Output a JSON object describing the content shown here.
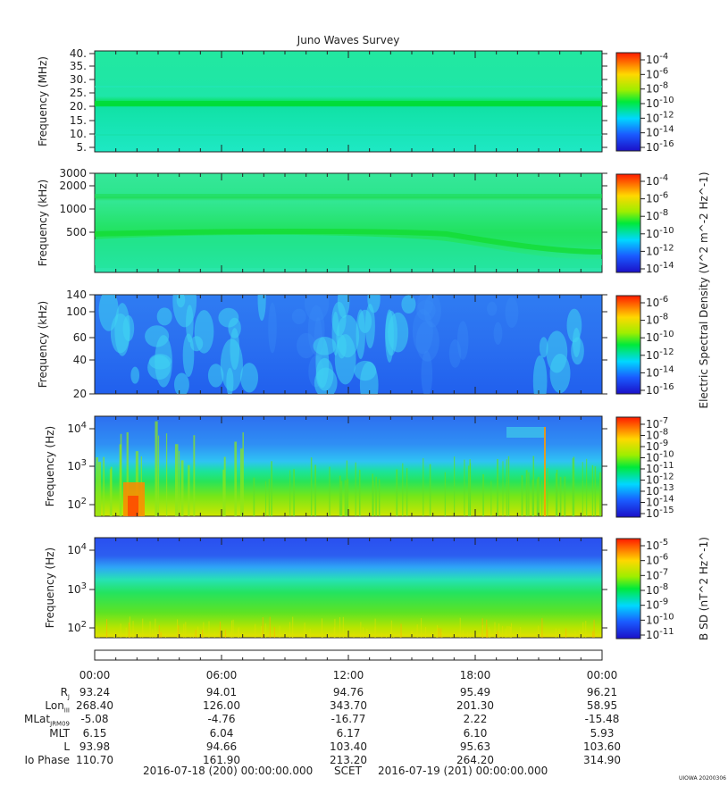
{
  "chart_data": {
    "type": "heatmap",
    "title": "Juno Waves Survey",
    "panels": [
      {
        "ylabel": "Frequency (MHz)",
        "yticks": [
          "40.",
          "35.",
          "30.",
          "25.",
          "20.",
          "15.",
          "10.",
          "5."
        ],
        "cbar_label": "",
        "cbar_ticks": [
          "10^-4",
          "10^-6",
          "10^-8",
          "10^-10",
          "10^-12",
          "10^-14",
          "10^-16"
        ]
      },
      {
        "ylabel": "Frequency (kHz)",
        "yticks": [
          "3000",
          "2000",
          "1000",
          "500"
        ],
        "cbar_label": "Electric Spectral Density (V^2 m^-2 Hz^-1)",
        "cbar_ticks": [
          "10^-4",
          "10^-6",
          "10^-8",
          "10^-10",
          "10^-12",
          "10^-14"
        ]
      },
      {
        "ylabel": "Frequency (kHz)",
        "yticks": [
          "140",
          "100",
          "60",
          "40",
          "20"
        ],
        "cbar_label": "",
        "cbar_ticks": [
          "10^-6",
          "10^-8",
          "10^-10",
          "10^-12",
          "10^-14",
          "10^-16"
        ]
      },
      {
        "ylabel": "Frequency (Hz)",
        "yticks": [
          "10^4",
          "10^3",
          "10^2"
        ],
        "cbar_label": "",
        "cbar_ticks": [
          "10^-7",
          "10^-8",
          "10^-9",
          "10^-10",
          "10^-11",
          "10^-12",
          "10^-13",
          "10^-14",
          "10^-15"
        ]
      },
      {
        "ylabel": "Frequency (Hz)",
        "yticks": [
          "10^4",
          "10^3",
          "10^2"
        ],
        "cbar_label": "B SD (nT^2 Hz^-1)",
        "cbar_ticks": [
          "10^-5",
          "10^-6",
          "10^-7",
          "10^-8",
          "10^-9",
          "10^-10",
          "10^-11"
        ]
      }
    ],
    "x_ticks": [
      "00:00",
      "06:00",
      "12:00",
      "18:00",
      "00:00"
    ],
    "ephemeris": [
      {
        "label": "R_J",
        "values": [
          "93.24",
          "94.01",
          "94.76",
          "95.49",
          "96.21"
        ]
      },
      {
        "label": "Lon_III",
        "values": [
          "268.40",
          "126.00",
          "343.70",
          "201.30",
          "58.95"
        ]
      },
      {
        "label": "MLat_JRM09",
        "values": [
          "-5.08",
          "-4.76",
          "-16.77",
          "2.22",
          "-15.48"
        ]
      },
      {
        "label": "MLT",
        "values": [
          "6.15",
          "6.04",
          "6.17",
          "6.10",
          "5.93"
        ]
      },
      {
        "label": "L",
        "values": [
          "93.98",
          "94.66",
          "103.40",
          "95.63",
          "103.60"
        ]
      },
      {
        "label": "Io Phase",
        "values": [
          "110.70",
          "161.90",
          "213.20",
          "264.20",
          "314.90"
        ]
      }
    ],
    "time_range": {
      "start": "2016-07-18 (200) 00:00:00.000",
      "label": "SCET",
      "end": "2016-07-19 (201) 00:00:00.000"
    },
    "credit": "UIOWA 20200306"
  }
}
